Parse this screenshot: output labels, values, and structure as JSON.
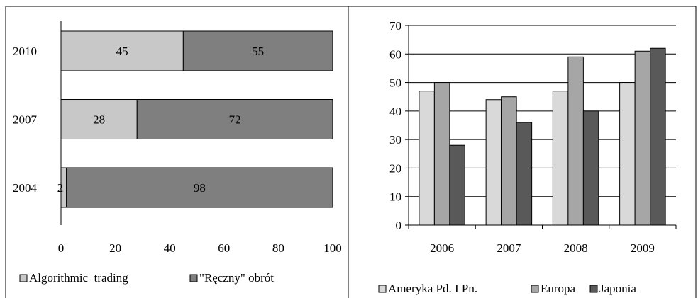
{
  "colors": {
    "light": "#d9d9d9",
    "medium": "#a6a6a6",
    "dark": "#7f7f7f",
    "darkest": "#595959",
    "border": "#000000"
  },
  "chart_data": [
    {
      "type": "bar",
      "orientation": "horizontal",
      "stacked": true,
      "categories": [
        "2010",
        "2007",
        "2004"
      ],
      "series": [
        {
          "name": "Algorithmic  trading",
          "values": [
            45,
            28,
            2
          ],
          "color": "#c8c8c8"
        },
        {
          "name": "\"Ręczny\" obrót",
          "values": [
            55,
            72,
            98
          ],
          "color": "#7f7f7f"
        }
      ],
      "data_labels": true,
      "xlim": [
        0,
        100
      ],
      "xticks": [
        "0",
        "20",
        "40",
        "60",
        "80",
        "100"
      ],
      "grid": false,
      "legend_position": "bottom"
    },
    {
      "type": "bar",
      "orientation": "vertical",
      "categories": [
        "2006",
        "2007",
        "2008",
        "2009"
      ],
      "series": [
        {
          "name": "Ameryka Pd. I Pn.",
          "values": [
            47,
            44,
            47,
            50
          ],
          "color": "#d9d9d9"
        },
        {
          "name": "Europa",
          "values": [
            50,
            45,
            59,
            61
          ],
          "color": "#a6a6a6"
        },
        {
          "name": "Japonia",
          "values": [
            28,
            36,
            40,
            62
          ],
          "color": "#595959"
        }
      ],
      "ylim": [
        0,
        70
      ],
      "yticks": [
        "0",
        "10",
        "20",
        "30",
        "40",
        "50",
        "60",
        "70"
      ],
      "grid": true,
      "legend_position": "bottom"
    }
  ]
}
